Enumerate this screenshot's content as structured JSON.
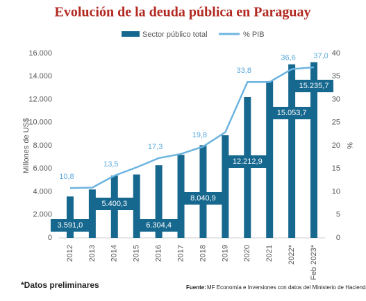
{
  "chart_data": {
    "type": "bar",
    "title": "Evolución de la deuda pública en Paraguay",
    "categories": [
      "2012",
      "2013",
      "2014",
      "2015",
      "2016",
      "2017",
      "2018",
      "2019",
      "2020",
      "2021",
      "2022*",
      "Feb 2023*"
    ],
    "series": [
      {
        "name": "Sector público total",
        "type": "bar",
        "color": "#17688f",
        "values": [
          3591.0,
          4200,
          5400.3,
          5500,
          6304.4,
          7200,
          8040.9,
          8900,
          12212.9,
          13600,
          15053.7,
          15235.7
        ],
        "value_labels": [
          "3.591,0",
          null,
          "5.400,3",
          null,
          "6.304,4",
          null,
          "8.040,9",
          null,
          "12.212,9",
          null,
          "15.053,7",
          "15.235,7"
        ]
      },
      {
        "name": "% PIB",
        "type": "line",
        "axis": "y2",
        "color": "#6cb4e0",
        "values": [
          10.8,
          10.9,
          13.5,
          15.3,
          17.3,
          18.2,
          19.8,
          22.9,
          33.8,
          33.8,
          36.6,
          37.0
        ],
        "value_labels": [
          "10,8",
          null,
          "13,5",
          null,
          "17,3",
          null,
          "19,8",
          null,
          "33,8",
          null,
          "36,6",
          "37,0"
        ]
      }
    ],
    "ylabel": "Millones de US$",
    "y2label": "%",
    "ylim": [
      0,
      16000
    ],
    "yticks": [
      0,
      {
        "value": 2000,
        "label": "2.000"
      },
      {
        "value": 4000,
        "label": "4.000"
      },
      {
        "value": 6000,
        "label": "6.000"
      },
      {
        "value": 8000,
        "label": "8.000"
      },
      {
        "value": 10000,
        "label": "10.000"
      },
      {
        "value": 12000,
        "label": "12.000"
      },
      {
        "value": 14000,
        "label": "14.000"
      },
      {
        "value": 16000,
        "label": "16.000"
      }
    ],
    "y2lim": [
      0,
      40
    ],
    "y2ticks": [
      0,
      5,
      10,
      15,
      20,
      25,
      30,
      35,
      40
    ],
    "grid": false,
    "note": "*Datos preliminares",
    "source_label": "Fuente:",
    "source": "MF Economía e Inversiones con datos del Ministerio de Hacienda"
  }
}
